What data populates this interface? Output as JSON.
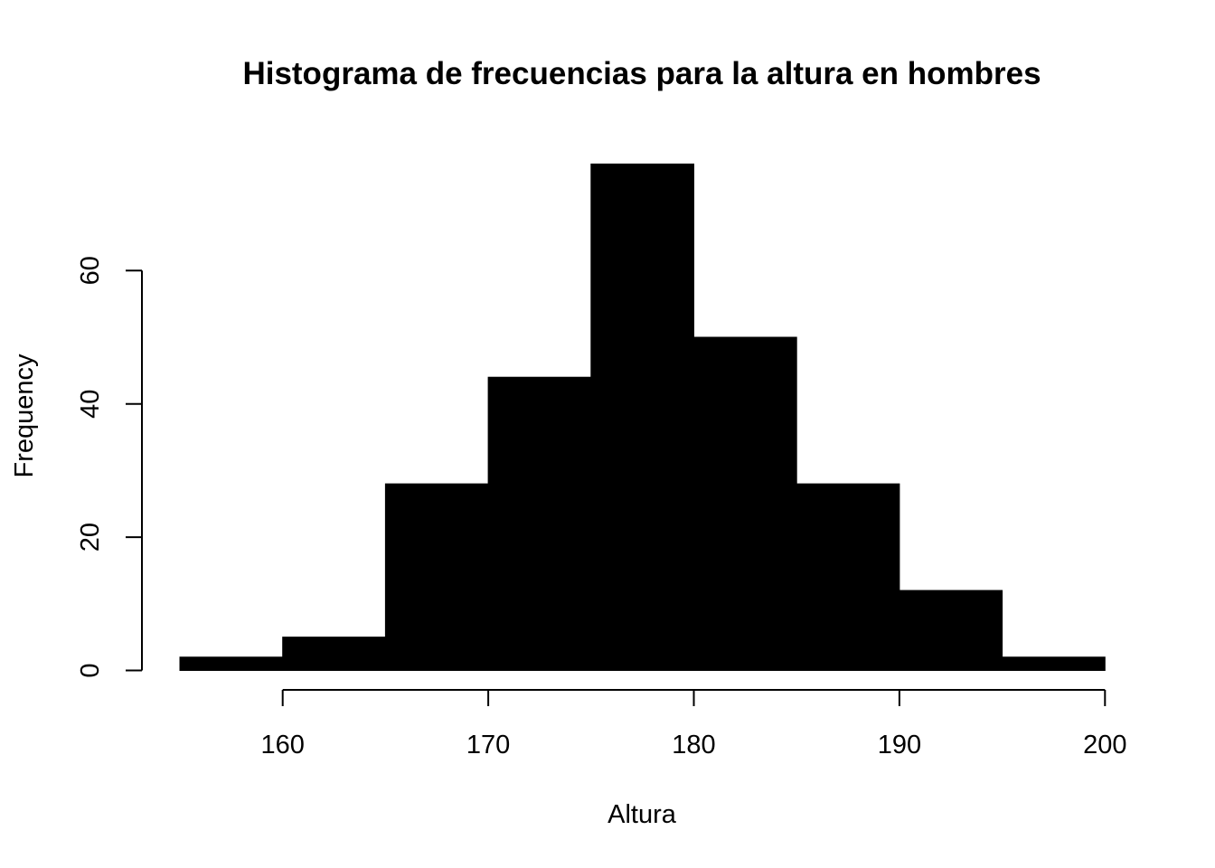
{
  "chart_data": {
    "type": "bar",
    "title": "Histograma de frecuencias para la altura en hombres",
    "xlabel": "Altura",
    "ylabel": "Frequency",
    "bins": [
      {
        "start": 155,
        "end": 160,
        "value": 2
      },
      {
        "start": 160,
        "end": 165,
        "value": 5
      },
      {
        "start": 165,
        "end": 170,
        "value": 28
      },
      {
        "start": 170,
        "end": 175,
        "value": 44
      },
      {
        "start": 175,
        "end": 180,
        "value": 76
      },
      {
        "start": 180,
        "end": 185,
        "value": 50
      },
      {
        "start": 185,
        "end": 190,
        "value": 28
      },
      {
        "start": 190,
        "end": 195,
        "value": 12
      },
      {
        "start": 195,
        "end": 200,
        "value": 2
      }
    ],
    "x_ticks": [
      160,
      170,
      180,
      190,
      200
    ],
    "y_ticks": [
      0,
      20,
      40,
      60
    ],
    "xlim": [
      155,
      200
    ],
    "ylim": [
      0,
      76
    ],
    "grid": false,
    "bar_color": "#000000"
  }
}
